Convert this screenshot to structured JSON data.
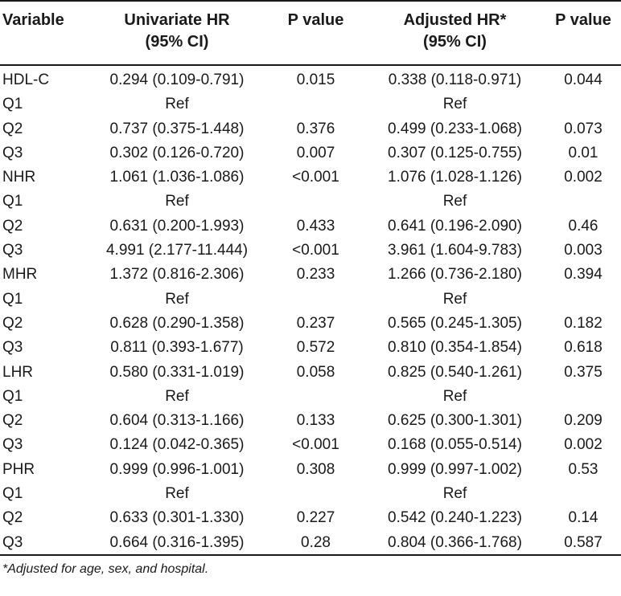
{
  "header": {
    "variable": "Variable",
    "univariate_line1": "Univariate HR",
    "univariate_line2": "(95% CI)",
    "pvalue1": "P value",
    "adjusted_line1": "Adjusted HR*",
    "adjusted_line2": "(95% CI)",
    "pvalue2": "P value"
  },
  "rows": [
    {
      "variable": "HDL-C",
      "uhr": "0.294 (0.109-0.791)",
      "p1": "0.015",
      "ahr": "0.338 (0.118-0.971)",
      "p2": "0.044"
    },
    {
      "variable": "Q1",
      "uhr": "Ref",
      "p1": "",
      "ahr": "Ref",
      "p2": ""
    },
    {
      "variable": "Q2",
      "uhr": "0.737 (0.375-1.448)",
      "p1": "0.376",
      "ahr": "0.499 (0.233-1.068)",
      "p2": "0.073"
    },
    {
      "variable": "Q3",
      "uhr": "0.302 (0.126-0.720)",
      "p1": "0.007",
      "ahr": "0.307 (0.125-0.755)",
      "p2": "0.01"
    },
    {
      "variable": "NHR",
      "uhr": "1.061 (1.036-1.086)",
      "p1": "<0.001",
      "ahr": "1.076 (1.028-1.126)",
      "p2": "0.002"
    },
    {
      "variable": "Q1",
      "uhr": "Ref",
      "p1": "",
      "ahr": "Ref",
      "p2": ""
    },
    {
      "variable": "Q2",
      "uhr": "0.631 (0.200-1.993)",
      "p1": "0.433",
      "ahr": "0.641 (0.196-2.090)",
      "p2": "0.46"
    },
    {
      "variable": "Q3",
      "uhr": "4.991 (2.177-11.444)",
      "p1": "<0.001",
      "ahr": "3.961 (1.604-9.783)",
      "p2": "0.003"
    },
    {
      "variable": "MHR",
      "uhr": "1.372 (0.816-2.306)",
      "p1": "0.233",
      "ahr": "1.266 (0.736-2.180)",
      "p2": "0.394"
    },
    {
      "variable": "Q1",
      "uhr": "Ref",
      "p1": "",
      "ahr": "Ref",
      "p2": ""
    },
    {
      "variable": "Q2",
      "uhr": "0.628 (0.290-1.358)",
      "p1": "0.237",
      "ahr": "0.565 (0.245-1.305)",
      "p2": "0.182"
    },
    {
      "variable": "Q3",
      "uhr": "0.811 (0.393-1.677)",
      "p1": "0.572",
      "ahr": "0.810 (0.354-1.854)",
      "p2": "0.618"
    },
    {
      "variable": "LHR",
      "uhr": "0.580 (0.331-1.019)",
      "p1": "0.058",
      "ahr": "0.825 (0.540-1.261)",
      "p2": "0.375"
    },
    {
      "variable": "Q1",
      "uhr": "Ref",
      "p1": "",
      "ahr": "Ref",
      "p2": ""
    },
    {
      "variable": "Q2",
      "uhr": "0.604 (0.313-1.166)",
      "p1": "0.133",
      "ahr": "0.625 (0.300-1.301)",
      "p2": "0.209"
    },
    {
      "variable": "Q3",
      "uhr": "0.124 (0.042-0.365)",
      "p1": "<0.001",
      "ahr": "0.168 (0.055-0.514)",
      "p2": "0.002"
    },
    {
      "variable": "PHR",
      "uhr": "0.999 (0.996-1.001)",
      "p1": "0.308",
      "ahr": "0.999 (0.997-1.002)",
      "p2": "0.53"
    },
    {
      "variable": "Q1",
      "uhr": "Ref",
      "p1": "",
      "ahr": "Ref",
      "p2": ""
    },
    {
      "variable": "Q2",
      "uhr": "0.633 (0.301-1.330)",
      "p1": "0.227",
      "ahr": "0.542 (0.240-1.223)",
      "p2": "0.14"
    },
    {
      "variable": "Q3",
      "uhr": "0.664 (0.316-1.395)",
      "p1": "0.28",
      "ahr": "0.804 (0.366-1.768)",
      "p2": "0.587"
    }
  ],
  "footnote": "*Adjusted for age, sex, and hospital."
}
